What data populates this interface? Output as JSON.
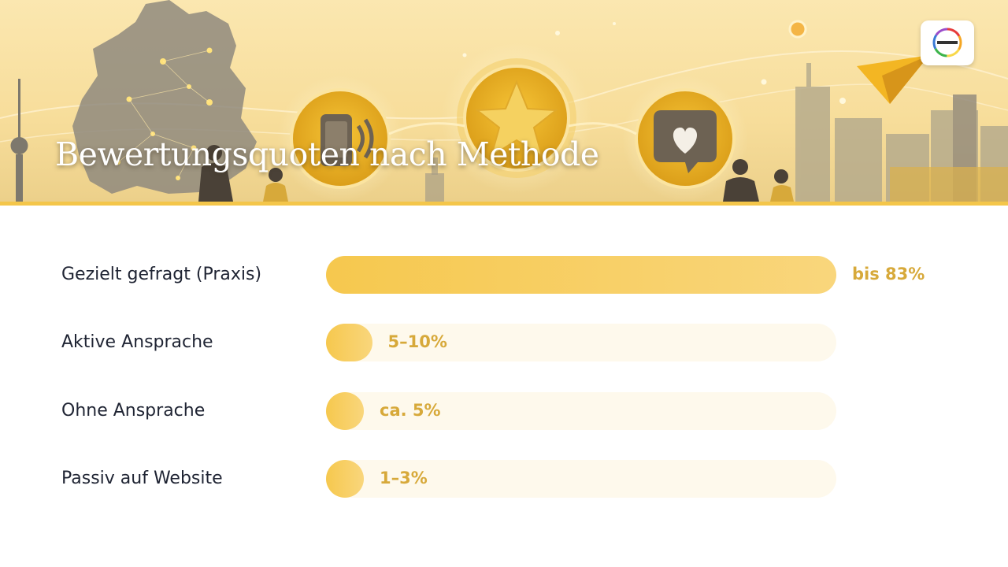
{
  "header": {
    "title": "Bewertungsquoten nach Methode",
    "logo_icon": "rainbow-ring-logo-icon"
  },
  "colors": {
    "accent": "#f4c64a",
    "bar_fill": "#f6c84e",
    "track": "#fef9ec",
    "value_text": "#d7a93a",
    "label_text": "#1f2433"
  },
  "chart_data": {
    "type": "bar",
    "orientation": "horizontal",
    "title": "Bewertungsquoten nach Methode",
    "xlabel": "",
    "ylabel": "",
    "xlim": [
      0,
      83
    ],
    "grid": false,
    "legend": "none",
    "categories": [
      "Gezielt gefragt (Praxis)",
      "Aktive Ansprache",
      "Ohne Ansprache",
      "Passiv auf Website"
    ],
    "values": [
      83,
      7.5,
      5,
      2
    ],
    "value_labels": [
      "bis 83%",
      "5–10%",
      "ca. 5%",
      "1–3%"
    ]
  }
}
